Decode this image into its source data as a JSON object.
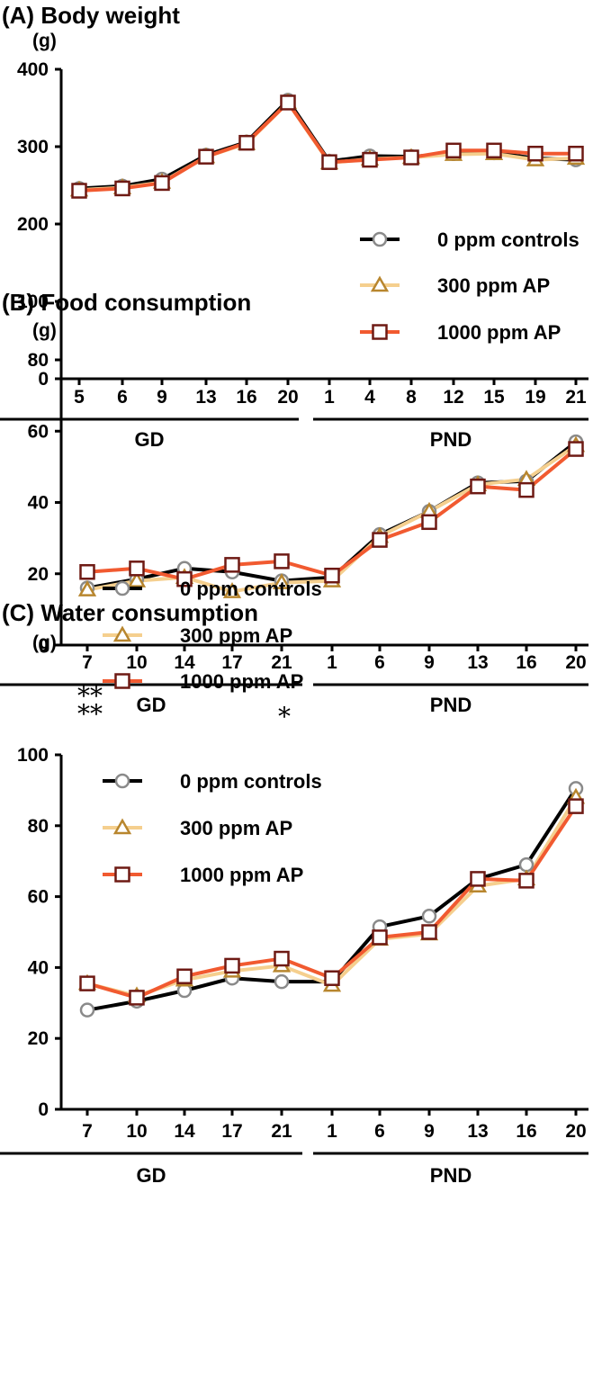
{
  "chart_data": [
    {
      "type": "line",
      "title": "(A) Body weight",
      "ylabel": "(g)",
      "ylim": [
        0,
        400
      ],
      "yticks": [
        "0",
        "100",
        "200",
        "300",
        "400"
      ],
      "groups": [
        {
          "label": "GD",
          "categories": [
            "5",
            "6",
            "9",
            "13",
            "16",
            "20"
          ]
        },
        {
          "label": "PND",
          "categories": [
            "1",
            "4",
            "8",
            "12",
            "15",
            "19",
            "21"
          ]
        }
      ],
      "legend": {
        "position": "right"
      },
      "series": [
        {
          "name": "0 ppm controls",
          "values": [
            246,
            249,
            258,
            289,
            306,
            360,
            281,
            288,
            287,
            291,
            292,
            285,
            283
          ]
        },
        {
          "name": "300 ppm AP",
          "values": [
            244,
            247,
            254,
            287,
            304,
            357,
            279,
            284,
            286,
            290,
            291,
            283,
            285
          ]
        },
        {
          "name": "1000 ppm AP",
          "values": [
            243,
            246,
            253,
            287,
            305,
            357,
            280,
            283,
            286,
            295,
            295,
            291,
            291
          ]
        }
      ],
      "annotations": []
    },
    {
      "type": "line",
      "title": "(B) Food consumption",
      "ylabel": "(g)",
      "ylim": [
        0,
        80
      ],
      "yticks": [
        "0",
        "20",
        "40",
        "60",
        "80"
      ],
      "groups": [
        {
          "label": "GD",
          "categories": [
            "7",
            "10",
            "14",
            "17",
            "21"
          ]
        },
        {
          "label": "PND",
          "categories": [
            "1",
            "6",
            "9",
            "13",
            "16",
            "20"
          ]
        }
      ],
      "legend": {
        "position": "top-left"
      },
      "series": [
        {
          "name": "0 ppm controls",
          "values": [
            16,
            18.5,
            21.5,
            20.5,
            18,
            19,
            31,
            37.5,
            45.5,
            46,
            57
          ]
        },
        {
          "name": "300 ppm AP",
          "values": [
            15.5,
            18,
            19,
            15,
            17.5,
            18,
            30.5,
            37.5,
            45,
            46.5,
            56
          ]
        },
        {
          "name": "1000 ppm AP",
          "values": [
            20.5,
            21.5,
            18.5,
            22.5,
            23.5,
            19.5,
            29.5,
            34.5,
            44.5,
            43.5,
            55
          ]
        }
      ],
      "annotations": []
    },
    {
      "type": "line",
      "title": "(C) Water consumption",
      "ylabel": "(g)",
      "ylim": [
        0,
        100
      ],
      "yticks": [
        "0",
        "20",
        "40",
        "60",
        "80",
        "100"
      ],
      "groups": [
        {
          "label": "GD",
          "categories": [
            "7",
            "10",
            "14",
            "17",
            "21"
          ]
        },
        {
          "label": "PND",
          "categories": [
            "1",
            "6",
            "9",
            "13",
            "16",
            "20"
          ]
        }
      ],
      "legend": {
        "position": "top-left"
      },
      "series": [
        {
          "name": "0 ppm controls",
          "values": [
            28,
            30.5,
            33.5,
            37,
            36,
            36,
            51.5,
            54.5,
            65,
            69,
            90.5
          ]
        },
        {
          "name": "300 ppm AP",
          "values": [
            35.5,
            32,
            36.5,
            39,
            40.5,
            35,
            48,
            49.5,
            63,
            65,
            88
          ]
        },
        {
          "name": "1000 ppm AP",
          "values": [
            35.5,
            31.5,
            37.5,
            40.5,
            42.5,
            37,
            48.5,
            50,
            65,
            64.5,
            85.5
          ]
        }
      ],
      "annotations": [
        {
          "category_index": 0,
          "lines": [
            "**",
            "**"
          ]
        },
        {
          "category_index": 4,
          "lines": [
            "*"
          ]
        }
      ]
    }
  ],
  "styles": {
    "series": [
      {
        "marker": "circle",
        "line": "#000000",
        "stroke": "#8a8a8a",
        "fill": "#ffffff"
      },
      {
        "marker": "triangle",
        "line": "#f5cf8e",
        "stroke": "#b8862e",
        "fill": "#ffffff"
      },
      {
        "marker": "square",
        "line": "#f15a30",
        "stroke": "#6e1a14",
        "fill": "#ffffff"
      }
    ]
  }
}
